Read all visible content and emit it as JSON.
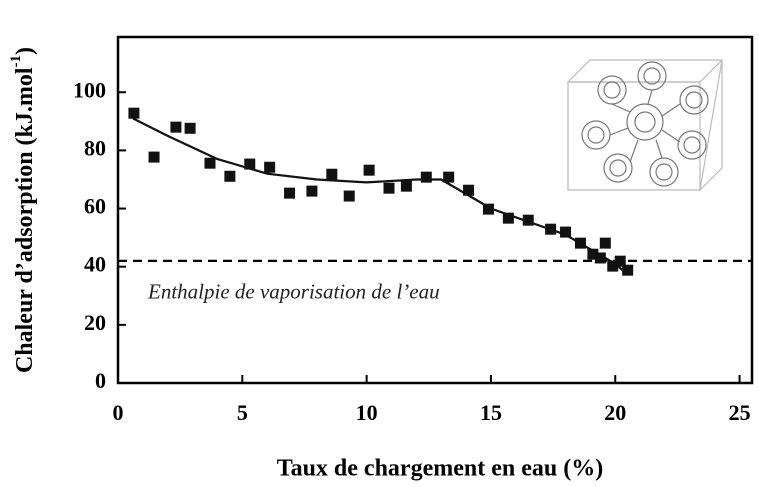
{
  "chart_data": {
    "type": "scatter",
    "xlabel": "Taux de chargement en eau (%)",
    "ylabel": {
      "text": "Chaleur d’adsorption (kJ.mol",
      "sup": "-1",
      "end": ")"
    },
    "xlim": [
      0,
      25.5
    ],
    "ylim": [
      0,
      119
    ],
    "xticks": [
      0,
      5,
      10,
      15,
      20,
      25
    ],
    "yticks": [
      0,
      20,
      40,
      60,
      80,
      100
    ],
    "series": [
      {
        "kind": "points",
        "color": "#111111",
        "x": [
          0.64,
          1.45,
          2.33,
          2.9,
          3.7,
          4.5,
          5.3,
          6.1,
          6.9,
          7.8,
          8.6,
          9.3,
          10.1,
          10.9,
          11.6,
          12.4,
          13.3,
          14.1,
          14.9,
          15.7,
          16.5,
          17.4,
          18,
          18.6,
          19.1,
          19.4,
          19.6,
          19.9,
          20.2,
          20.5
        ],
        "values": [
          92.8,
          77.7,
          88,
          87.6,
          75.6,
          71.1,
          75.3,
          74.2,
          65.3,
          66,
          71.8,
          64.3,
          73.2,
          67,
          67.7,
          70.8,
          70.8,
          66.3,
          59.8,
          56.7,
          56,
          52.9,
          51.9,
          48.1,
          44.3,
          43,
          48.1,
          40.2,
          41.9,
          38.8
        ]
      },
      {
        "kind": "line",
        "color": "#111111",
        "x": [
          0.6,
          2,
          4,
          6,
          8,
          10,
          12,
          13,
          14,
          15,
          16,
          17,
          18,
          19,
          20,
          20.4
        ],
        "values": [
          91,
          85,
          77,
          72,
          70,
          69,
          70,
          70,
          65,
          60,
          57,
          54,
          51,
          46,
          41,
          38
        ]
      }
    ],
    "reference_line": {
      "value": 42,
      "label": "Enthalpie de vaporisation de l’eau"
    }
  }
}
